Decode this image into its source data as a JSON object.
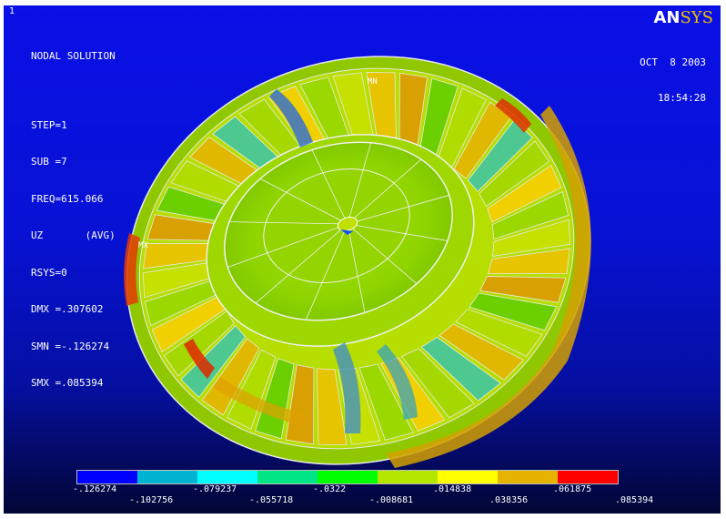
{
  "window_number": "1",
  "info_lines": {
    "l1": "NODAL SOLUTION",
    "l2": "STEP=1",
    "l3": "SUB =7",
    "l4": "FREQ=615.066",
    "l5": "UZ       (AVG)",
    "l6": "RSYS=0",
    "l7": "DMX =.307602",
    "l8": "SMN =-.126274",
    "l9": "SMX =.085394"
  },
  "logo": {
    "an": "AN",
    "sys": "SYS"
  },
  "date": "OCT  8 2003",
  "time": "18:54:28",
  "mx_label": "MX",
  "mn_label": "MN",
  "legend": {
    "colors": [
      "#0000ff",
      "#00b4d2",
      "#00ffff",
      "#00e687",
      "#00ff00",
      "#b4e600",
      "#ffff00",
      "#e6b400",
      "#ff0000"
    ],
    "upper_ticks": [
      "-.126274",
      "-.079237",
      "-.0322",
      ".014838",
      ".061875"
    ],
    "lower_ticks": [
      "-.102756",
      "-.055718",
      "-.008681",
      ".038356",
      ".085394"
    ]
  },
  "colors": {
    "background_top": "#0a10e6",
    "background_bottom": "#020634",
    "text": "#ffffff",
    "logo_accent": "#f2c200"
  }
}
